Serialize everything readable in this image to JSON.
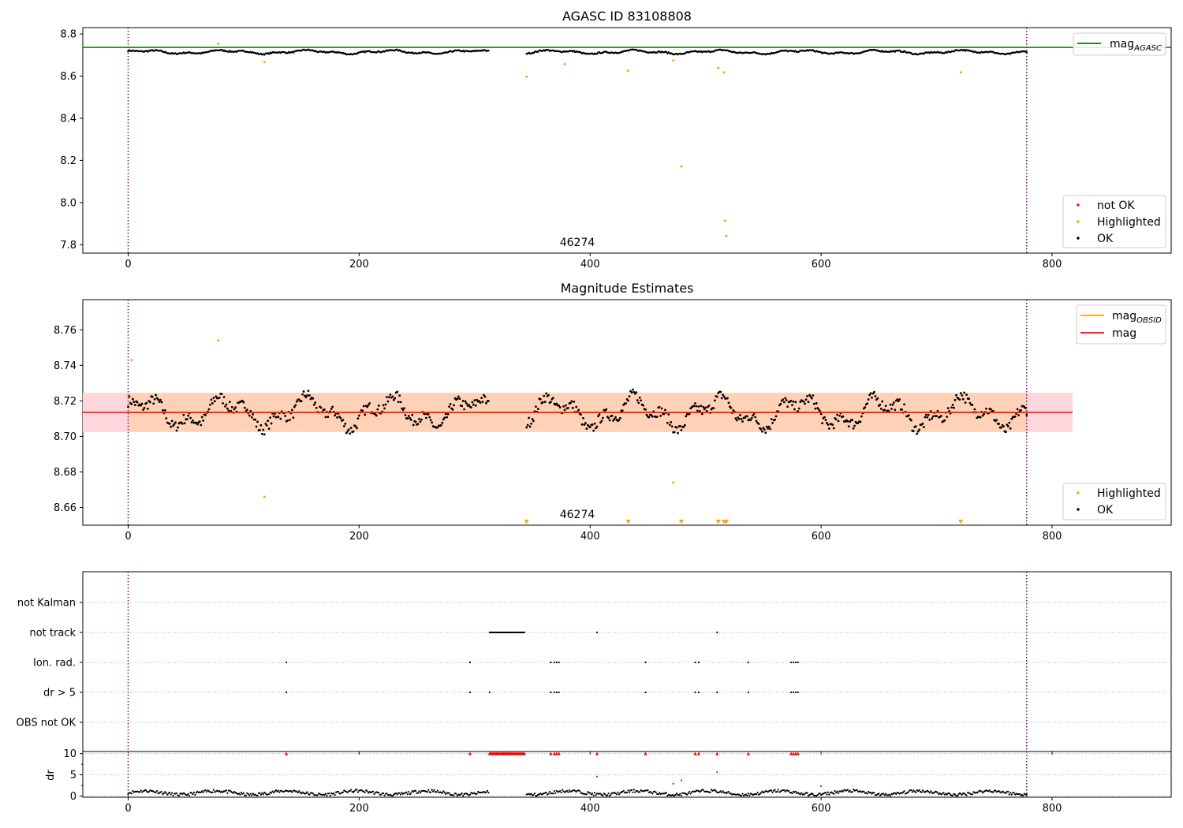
{
  "chart_data": [
    {
      "type": "scatter",
      "title": "AGASC ID 83108808",
      "ylim": [
        7.76,
        8.83
      ],
      "xlim": [
        -39,
        900
      ],
      "xticks": [
        0,
        200,
        400,
        600,
        800
      ],
      "yticks": [
        7.8,
        8.0,
        8.2,
        8.4,
        8.6,
        8.8
      ],
      "ytick_labels": [
        "7.8",
        "8.0",
        "8.2",
        "8.4",
        "8.6",
        "8.8"
      ],
      "hline": {
        "name": "mag_AGASC",
        "y": 8.736,
        "color": "#008000"
      },
      "vlines": [
        0,
        778
      ],
      "annotation": {
        "text": "46274",
        "x": 378,
        "y": 7.8
      },
      "legend_lines": [
        {
          "label": "mag",
          "sub": "AGASC",
          "color": "#008000"
        }
      ],
      "legend_markers": [
        {
          "label": "not OK",
          "color": "#ff0000"
        },
        {
          "label": "Highlighted",
          "color": "#ffa500"
        },
        {
          "label": "OK",
          "color": "#000000"
        }
      ],
      "ok_series": {
        "name": "OK",
        "segments": [
          {
            "x_start": 0,
            "x_end": 312,
            "y_base": 8.714
          },
          {
            "x_start": 345,
            "x_end": 778,
            "y_base": 8.714
          }
        ],
        "amplitude": 0.012
      },
      "highlighted": [
        {
          "x": 78,
          "y": 8.754
        },
        {
          "x": 118,
          "y": 8.666
        },
        {
          "x": 345,
          "y": 8.597
        },
        {
          "x": 378,
          "y": 8.657
        },
        {
          "x": 433,
          "y": 8.625
        },
        {
          "x": 472,
          "y": 8.674
        },
        {
          "x": 479,
          "y": 8.171
        },
        {
          "x": 511,
          "y": 8.638
        },
        {
          "x": 516,
          "y": 8.617
        },
        {
          "x": 517,
          "y": 7.914
        },
        {
          "x": 518,
          "y": 7.841
        },
        {
          "x": 721,
          "y": 8.617
        }
      ]
    },
    {
      "type": "scatter",
      "title": "Magnitude Estimates",
      "ylim": [
        8.65,
        8.777
      ],
      "xlim": [
        -39,
        900
      ],
      "xticks": [
        0,
        200,
        400,
        600,
        800
      ],
      "yticks": [
        8.66,
        8.68,
        8.7,
        8.72,
        8.74,
        8.76
      ],
      "ytick_labels": [
        "8.66",
        "8.68",
        "8.70",
        "8.72",
        "8.74",
        "8.76"
      ],
      "mag": 8.7135,
      "band_outer": [
        8.7025,
        8.7245
      ],
      "band_inner": [
        8.7025,
        8.7245
      ],
      "vlines": [
        0,
        778
      ],
      "annotation": {
        "text": "46274",
        "x": 378,
        "y": 8.6555
      },
      "legend_lines": [
        {
          "label": "mag",
          "sub": "OBSID",
          "color": "#ffa500"
        },
        {
          "label": "mag",
          "sub": "",
          "color": "#ff0000"
        }
      ],
      "legend_markers": [
        {
          "label": "Highlighted",
          "color": "#ffa500"
        },
        {
          "label": "OK",
          "color": "#000000"
        }
      ],
      "highlighted": [
        {
          "x": 3,
          "y": 8.743
        },
        {
          "x": 78,
          "y": 8.754
        },
        {
          "x": 118,
          "y": 8.666
        },
        {
          "x": 378,
          "y": 8.657
        },
        {
          "x": 472,
          "y": 8.674
        }
      ],
      "below_markers_x": [
        345,
        433,
        479,
        511,
        516,
        518,
        721
      ]
    },
    {
      "type": "scatter",
      "categories": [
        "OBS not OK",
        "dr > 5",
        "Ion. rad.",
        "not track",
        "not Kalman"
      ],
      "vlines": [
        0,
        778
      ],
      "not_track_x": {
        "range": [
          313,
          343
        ],
        "extra": [
          406,
          510
        ]
      },
      "ion_rad_x": [
        137,
        296,
        366,
        369,
        371,
        373,
        448,
        491,
        494,
        537,
        574,
        576,
        578,
        580
      ],
      "dr_gt_5_x": [
        137,
        296,
        313,
        366,
        369,
        371,
        373,
        448,
        491,
        494,
        510,
        537,
        574,
        576,
        578,
        580
      ]
    },
    {
      "type": "scatter",
      "ylabel": "dr",
      "ylim": [
        -0.3,
        10.5
      ],
      "yticks": [
        0,
        5,
        10
      ],
      "ytick_labels": [
        "0",
        "5",
        "10"
      ],
      "xticks": [
        0,
        200,
        400,
        600,
        800
      ],
      "xtick_labels": [
        "0",
        "200",
        "400",
        "600",
        "800"
      ],
      "vlines": [
        0,
        778
      ],
      "clipped_at_10_x": [
        137,
        296,
        366,
        369,
        371,
        373,
        406,
        448,
        491,
        494,
        510,
        537,
        574,
        576,
        578,
        580
      ],
      "clipped_range": [
        313,
        343
      ],
      "scattered_points": [
        {
          "x": 406,
          "y": 4.6
        },
        {
          "x": 472,
          "y": 2.9
        },
        {
          "x": 479,
          "y": 3.7
        },
        {
          "x": 510,
          "y": 5.6
        },
        {
          "x": 600,
          "y": 2.3
        }
      ]
    }
  ]
}
